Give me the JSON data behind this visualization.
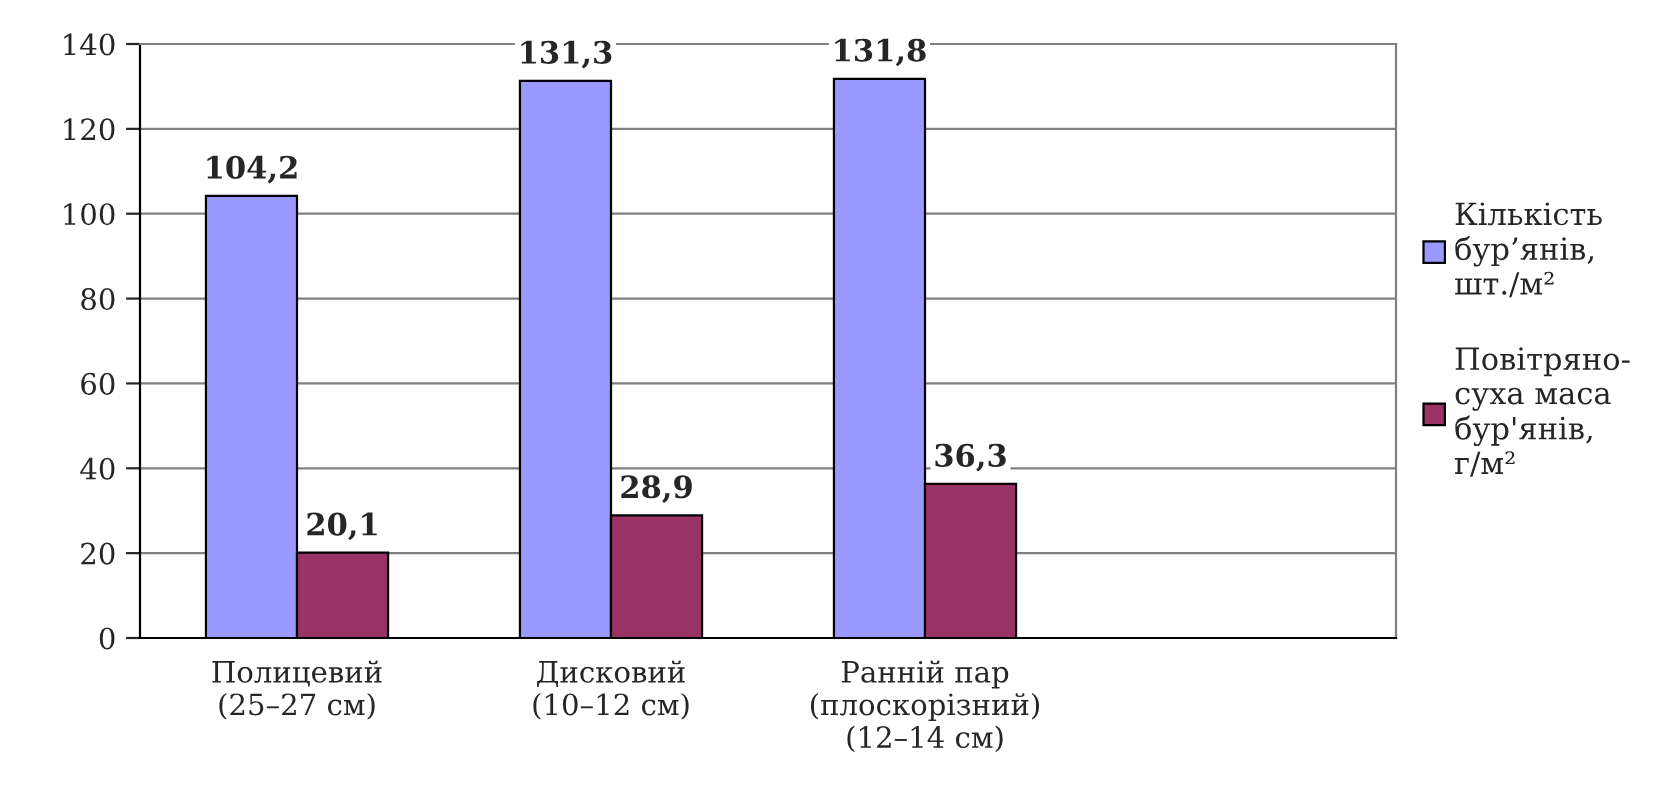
{
  "chart_data": {
    "type": "bar",
    "categories": [
      "Полицевий\n(25–27 см)",
      "Дисковий\n(10–12 см)",
      "Ранній пар\n(плоскорізний)\n(12–14 см)",
      null
    ],
    "series": [
      {
        "name": "Кількість\nбур’янів,\nшт./м²",
        "color": "#9999ff",
        "values": [
          104.2,
          131.3,
          131.8,
          null
        ],
        "value_labels": [
          "104,2",
          "131,3",
          "131,8",
          null
        ]
      },
      {
        "name": "Повітряно-\nсуха маса\nбур'янів,\nг/м²",
        "color": "#993366",
        "values": [
          20.1,
          28.9,
          36.3,
          null
        ],
        "value_labels": [
          "20,1",
          "28,9",
          "36,3",
          null
        ]
      }
    ],
    "ylim": [
      0,
      140
    ],
    "yticks": [
      0,
      20,
      40,
      60,
      80,
      100,
      120,
      140
    ],
    "grid": "y",
    "legend": "right"
  }
}
